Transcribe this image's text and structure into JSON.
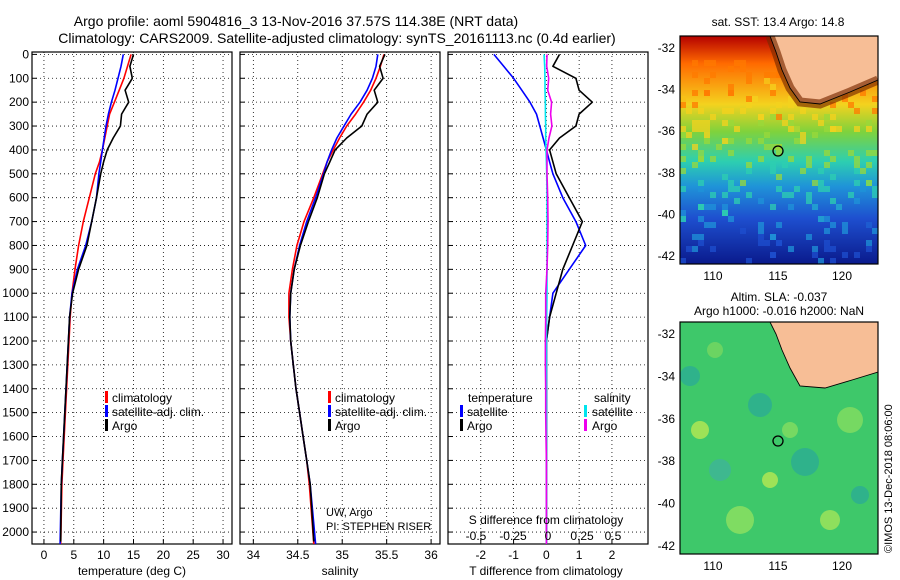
{
  "header": {
    "line1": "Argo profile: aoml 5904816_3 13-Nov-2016 37.57S 114.38E (NRT data)",
    "line2": "Climatology: CARS2009. Satellite-adjusted climatology: synTS_20161113.nc (0.4d earlier)"
  },
  "colors": {
    "climatology": "#ff0000",
    "satellite": "#0000ff",
    "argo": "#000000",
    "sat_salinity": "#00e5ee",
    "argo_salinity": "#ee00ee",
    "land": "#f7be96"
  },
  "depth_ticks": [
    0,
    100,
    200,
    300,
    400,
    500,
    600,
    700,
    800,
    900,
    1000,
    1100,
    1200,
    1300,
    1400,
    1500,
    1600,
    1700,
    1800,
    1900,
    2000
  ],
  "panel_temperature": {
    "xlabel": "temperature (deg C)",
    "xticks": [
      0,
      5,
      10,
      15,
      20,
      25,
      30
    ],
    "xlim": [
      -2,
      31.5
    ],
    "legend": [
      "climatology",
      "satellite-adj. clim.",
      "Argo"
    ]
  },
  "panel_salinity": {
    "xlabel": "salinity",
    "xticks": [
      "34",
      "34.5",
      "35",
      "35.5",
      "36"
    ],
    "xlim": [
      33.85,
      36.1
    ],
    "legend": [
      "climatology",
      "satellite-adj. clim.",
      "Argo"
    ],
    "credit1": "UW, Argo",
    "credit2": "PI: STEPHEN RISER"
  },
  "panel_difference": {
    "xlabel": "T difference from climatology",
    "xticks": [
      "-2",
      "-1",
      "0",
      "1",
      "2"
    ],
    "xlim": [
      -3,
      3.1
    ],
    "top_xlabel": "S difference from climatology",
    "top_xticks": [
      "-0.5",
      "-0.25",
      "0",
      "0.25",
      "0.5"
    ],
    "legend_temperature_title": "temperature",
    "legend_salinity_title": "salinity",
    "legend_satellite": "satellite",
    "legend_argo": "Argo"
  },
  "map_sst": {
    "title": "sat. SST: 13.4 Argo: 14.8",
    "yticks": [
      "-32",
      "-34",
      "-36",
      "-38",
      "-40",
      "-42"
    ],
    "xticks": [
      "110",
      "115",
      "120"
    ]
  },
  "map_sla": {
    "title1": "Altim. SLA: -0.037",
    "title2": "Argo h1000: -0.016 h2000: NaN",
    "yticks": [
      "-32",
      "-34",
      "-36",
      "-38",
      "-40",
      "-42"
    ],
    "xticks": [
      "110",
      "115",
      "120"
    ]
  },
  "stamp": "©IMOS 13-Dec-2018 08:06:00",
  "chart_data": [
    {
      "type": "line",
      "xlabel": "temperature (deg C)",
      "ylim": [
        2050,
        -10
      ],
      "xlim": [
        -2,
        31.5
      ],
      "series": [
        {
          "name": "climatology",
          "x": [
            14.6,
            14.0,
            13.4,
            12.6,
            11.8,
            11.0,
            10.6,
            10.2,
            9.8,
            9.3,
            8.6,
            7.6,
            6.6,
            5.8,
            5.2,
            4.7,
            4.4,
            4.2,
            4.0,
            3.8,
            3.6,
            3.4,
            3.2,
            3.0,
            2.8
          ],
          "depth": [
            0,
            50,
            100,
            150,
            200,
            250,
            300,
            350,
            400,
            450,
            500,
            600,
            700,
            800,
            900,
            1000,
            1100,
            1200,
            1300,
            1400,
            1500,
            1600,
            1700,
            1800,
            2050
          ]
        },
        {
          "name": "satellite-adj. clim.",
          "x": [
            13.3,
            12.9,
            12.4,
            11.9,
            11.3,
            10.8,
            10.4,
            10.1,
            9.8,
            9.5,
            9.2,
            8.8,
            8.0,
            7.0,
            5.6,
            4.7,
            4.3,
            4.1,
            3.9,
            3.7,
            3.5,
            3.3,
            3.1,
            2.9,
            2.7
          ],
          "depth": [
            0,
            50,
            100,
            150,
            200,
            250,
            300,
            350,
            400,
            450,
            500,
            600,
            700,
            800,
            900,
            1000,
            1100,
            1200,
            1300,
            1400,
            1500,
            1600,
            1700,
            1800,
            2050
          ]
        },
        {
          "name": "Argo",
          "x": [
            15.0,
            14.4,
            14.8,
            13.6,
            14.2,
            13.0,
            12.8,
            11.6,
            10.6,
            10.0,
            9.5,
            8.8,
            8.0,
            7.2,
            5.8,
            4.8,
            4.3,
            4.1,
            3.9,
            3.7,
            3.5,
            3.3,
            3.1,
            2.9,
            2.8
          ],
          "depth": [
            0,
            50,
            100,
            150,
            200,
            250,
            300,
            350,
            400,
            450,
            500,
            600,
            700,
            800,
            900,
            1000,
            1100,
            1200,
            1300,
            1400,
            1500,
            1600,
            1700,
            1800,
            2040
          ]
        }
      ]
    },
    {
      "type": "line",
      "xlabel": "salinity",
      "ylim": [
        2050,
        -10
      ],
      "xlim": [
        33.85,
        36.1
      ],
      "series": [
        {
          "name": "climatology",
          "x": [
            35.47,
            35.43,
            35.38,
            35.32,
            35.24,
            35.15,
            35.05,
            34.97,
            34.9,
            34.83,
            34.78,
            34.68,
            34.57,
            34.49,
            34.44,
            34.4,
            34.4,
            34.42,
            34.45,
            34.48,
            34.52,
            34.56,
            34.6,
            34.63,
            34.68
          ],
          "depth": [
            0,
            50,
            100,
            150,
            200,
            250,
            300,
            350,
            400,
            450,
            500,
            600,
            700,
            800,
            900,
            1000,
            1100,
            1200,
            1300,
            1400,
            1500,
            1600,
            1700,
            1800,
            2050
          ]
        },
        {
          "name": "satellite-adj. clim.",
          "x": [
            35.4,
            35.38,
            35.34,
            35.28,
            35.2,
            35.1,
            35.02,
            34.94,
            34.88,
            34.83,
            34.79,
            34.7,
            34.6,
            34.52,
            34.46,
            34.42,
            34.41,
            34.42,
            34.45,
            34.48,
            34.52,
            34.56,
            34.6,
            34.64,
            34.7
          ],
          "depth": [
            0,
            50,
            100,
            150,
            200,
            250,
            300,
            350,
            400,
            450,
            500,
            600,
            700,
            800,
            900,
            1000,
            1100,
            1200,
            1300,
            1400,
            1500,
            1600,
            1700,
            1800,
            2050
          ]
        },
        {
          "name": "Argo",
          "x": [
            35.48,
            35.42,
            35.46,
            35.36,
            35.4,
            35.28,
            35.22,
            35.05,
            34.92,
            34.86,
            34.8,
            34.72,
            34.62,
            34.53,
            34.46,
            34.42,
            34.41,
            34.42,
            34.45,
            34.48,
            34.52,
            34.56,
            34.6,
            34.64,
            34.68
          ],
          "depth": [
            0,
            50,
            100,
            150,
            200,
            250,
            300,
            350,
            400,
            450,
            500,
            600,
            700,
            800,
            900,
            1000,
            1100,
            1200,
            1300,
            1400,
            1500,
            1600,
            1700,
            1800,
            2040
          ]
        }
      ]
    },
    {
      "type": "line",
      "xlabel": "T difference from climatology",
      "ylim": [
        2050,
        -10
      ],
      "xlim": [
        -3,
        3.1
      ],
      "series": [
        {
          "name": "satellite (temperature)",
          "x": [
            -1.6,
            -1.3,
            -1.0,
            -0.75,
            -0.5,
            -0.3,
            -0.2,
            -0.1,
            0.0,
            0.1,
            0.2,
            0.5,
            0.9,
            1.2,
            0.7,
            0.2,
            0.1,
            0.0,
            0.0,
            0.0,
            0.0,
            0.0,
            0.0,
            0.0,
            0.0
          ],
          "depth": [
            0,
            50,
            100,
            150,
            200,
            250,
            300,
            350,
            400,
            450,
            500,
            600,
            700,
            800,
            900,
            1000,
            1100,
            1200,
            1300,
            1400,
            1500,
            1600,
            1700,
            1800,
            2050
          ]
        },
        {
          "name": "Argo (temperature)",
          "x": [
            0.4,
            0.2,
            0.9,
            1.0,
            1.4,
            1.0,
            0.9,
            0.4,
            0.1,
            0.2,
            0.3,
            0.7,
            1.1,
            0.8,
            0.5,
            0.3,
            0.1,
            0.0,
            0.0,
            0.0,
            0.0,
            0.0,
            0.0,
            0.0,
            0.0
          ],
          "depth": [
            0,
            50,
            100,
            150,
            200,
            250,
            300,
            350,
            400,
            450,
            500,
            600,
            700,
            800,
            900,
            1000,
            1100,
            1200,
            1300,
            1400,
            1500,
            1600,
            1700,
            1800,
            2050
          ]
        },
        {
          "name": "satellite (salinity)",
          "x": [
            -0.07,
            -0.05,
            -0.04,
            -0.04,
            -0.03,
            -0.03,
            -0.02,
            -0.02,
            -0.01,
            0.0,
            0.01,
            0.02,
            0.02,
            0.02,
            0.02,
            0.02,
            0.01,
            0.0,
            0.0,
            0.0,
            0.0,
            0.0,
            0.0,
            0.0,
            0.0
          ],
          "depth": [
            0,
            50,
            100,
            150,
            200,
            250,
            300,
            350,
            400,
            450,
            500,
            600,
            700,
            800,
            900,
            1000,
            1100,
            1200,
            1300,
            1400,
            1500,
            1600,
            1700,
            1800,
            2050
          ]
        },
        {
          "name": "Argo (salinity)",
          "x": [
            0.02,
            0.01,
            0.07,
            0.04,
            0.16,
            0.13,
            0.17,
            0.08,
            0.02,
            0.02,
            0.02,
            0.04,
            0.05,
            0.04,
            0.02,
            -0.02,
            -0.02,
            -0.03,
            -0.03,
            -0.02,
            -0.02,
            -0.01,
            0.0,
            0.0,
            0.0
          ],
          "depth": [
            0,
            50,
            100,
            150,
            200,
            250,
            300,
            350,
            400,
            450,
            500,
            600,
            700,
            800,
            900,
            1000,
            1100,
            1200,
            1300,
            1400,
            1500,
            1600,
            1700,
            1800,
            2050
          ]
        }
      ]
    }
  ]
}
